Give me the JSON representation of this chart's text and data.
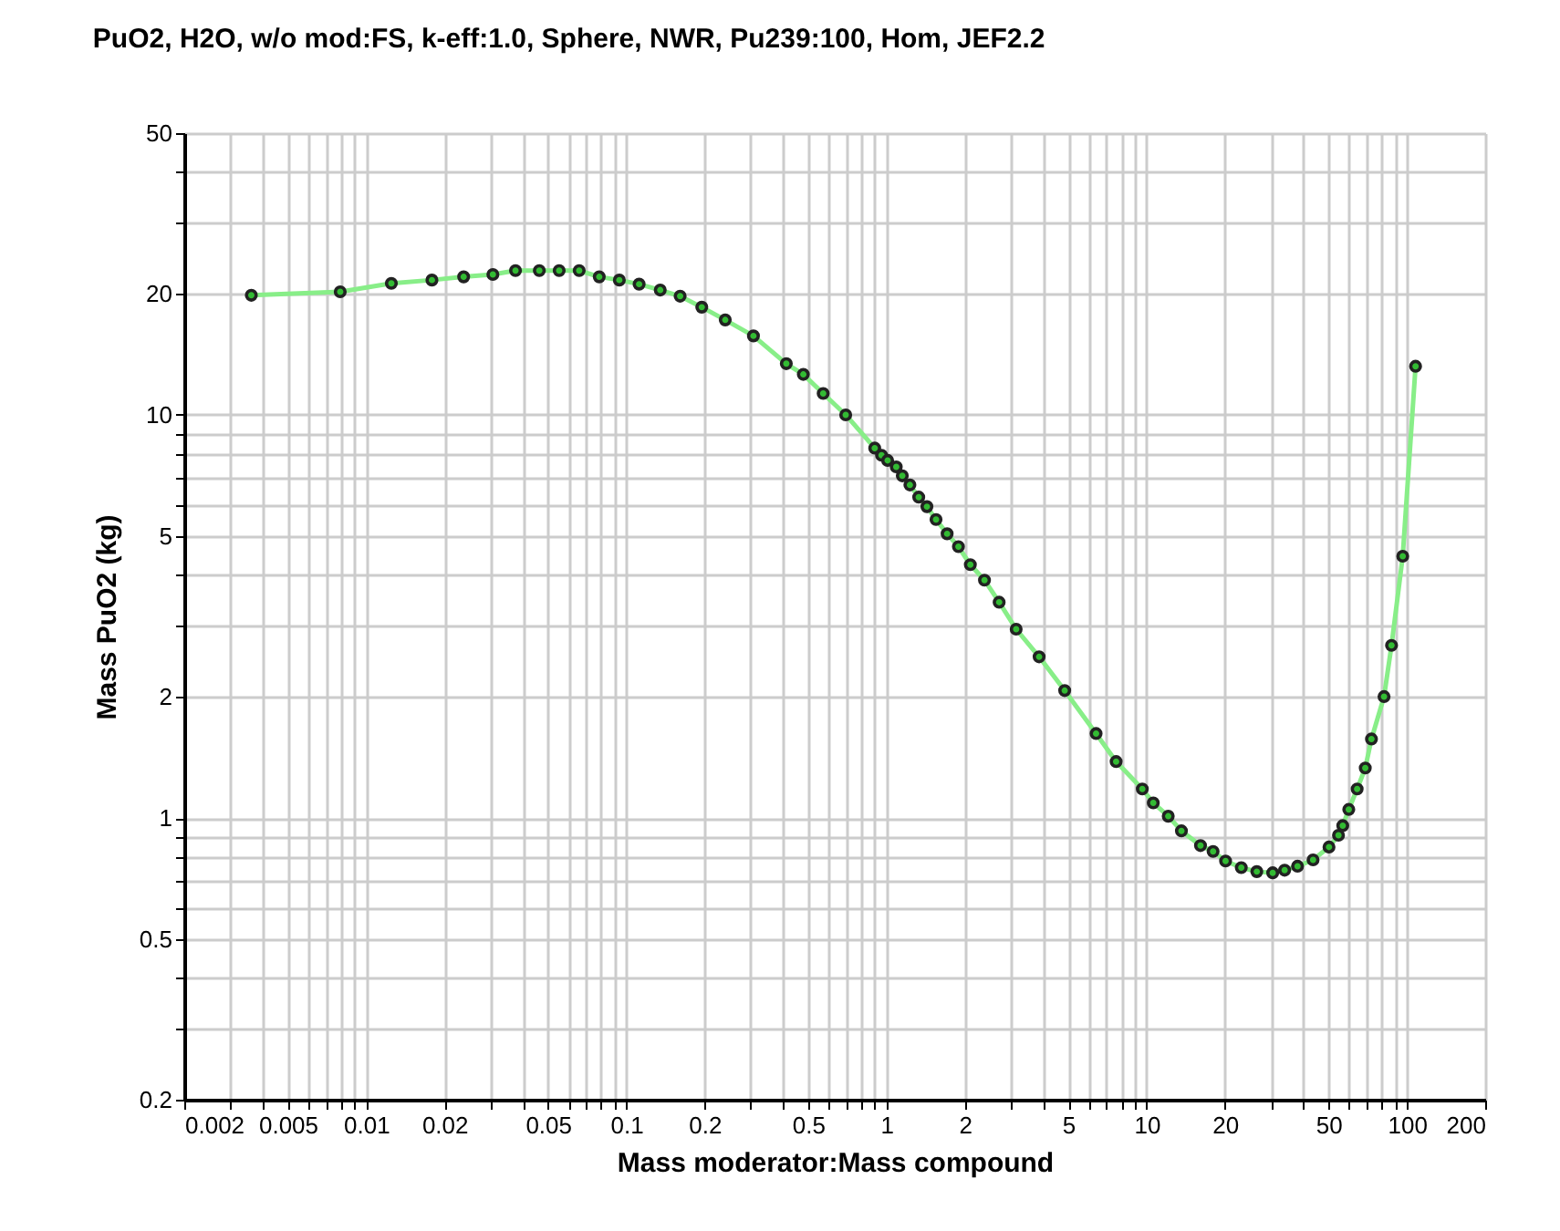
{
  "chart_data": {
    "type": "line",
    "title": "PuO2, H2O, w/o mod:FS, k-eff:1.0, Sphere, NWR, Pu239:100, Hom, JEF2.2",
    "xlabel": "Mass moderator:Mass compound",
    "ylabel": "Mass PuO2 (kg)",
    "log": "xy",
    "grid": true,
    "marker": "circle",
    "line_style": "solid",
    "xlim": [
      0.002,
      200
    ],
    "ylim": [
      0.2,
      50
    ],
    "xticks": [
      0.002,
      {
        "value": 0.003,
        "label": null
      },
      {
        "value": 0.004,
        "label": null
      },
      0.005,
      {
        "value": 0.006,
        "label": null
      },
      {
        "value": 0.007,
        "label": null
      },
      {
        "value": 0.008,
        "label": null
      },
      {
        "value": 0.009,
        "label": null
      },
      0.01,
      0.02,
      {
        "value": 0.03,
        "label": null
      },
      {
        "value": 0.04,
        "label": null
      },
      0.05,
      {
        "value": 0.06,
        "label": null
      },
      {
        "value": 0.07,
        "label": null
      },
      {
        "value": 0.08,
        "label": null
      },
      {
        "value": 0.09,
        "label": null
      },
      0.1,
      0.2,
      {
        "value": 0.3,
        "label": null
      },
      {
        "value": 0.4,
        "label": null
      },
      0.5,
      {
        "value": 0.6,
        "label": null
      },
      {
        "value": 0.7,
        "label": null
      },
      {
        "value": 0.8,
        "label": null
      },
      {
        "value": 0.9,
        "label": null
      },
      1,
      2,
      {
        "value": 3,
        "label": null
      },
      {
        "value": 4,
        "label": null
      },
      5,
      {
        "value": 6,
        "label": null
      },
      {
        "value": 7,
        "label": null
      },
      {
        "value": 8,
        "label": null
      },
      {
        "value": 9,
        "label": null
      },
      10,
      20,
      {
        "value": 30,
        "label": null
      },
      {
        "value": 40,
        "label": null
      },
      50,
      {
        "value": 60,
        "label": null
      },
      {
        "value": 70,
        "label": null
      },
      {
        "value": 80,
        "label": null
      },
      {
        "value": 90,
        "label": null
      },
      100,
      200
    ],
    "yticks": [
      0.2,
      {
        "value": 0.3,
        "label": null
      },
      {
        "value": 0.4,
        "label": null
      },
      0.5,
      {
        "value": 0.6,
        "label": null
      },
      {
        "value": 0.7,
        "label": null
      },
      {
        "value": 0.8,
        "label": null
      },
      {
        "value": 0.9,
        "label": null
      },
      1,
      2,
      {
        "value": 3,
        "label": null
      },
      {
        "value": 4,
        "label": null
      },
      5,
      {
        "value": 6,
        "label": null
      },
      {
        "value": 7,
        "label": null
      },
      {
        "value": 8,
        "label": null
      },
      {
        "value": 9,
        "label": null
      },
      10,
      20,
      {
        "value": 30,
        "label": null
      },
      {
        "value": 40,
        "label": null
      },
      50
    ],
    "x": [
      0.00362,
      0.00795,
      0.0125,
      0.0179,
      0.0237,
      0.0307,
      0.0375,
      0.0463,
      0.0552,
      0.0659,
      0.0787,
      0.094,
      0.112,
      0.135,
      0.161,
      0.195,
      0.24,
      0.308,
      0.412,
      0.479,
      0.571,
      0.697,
      0.901,
      0.957,
      1.01,
      1.09,
      1.15,
      1.23,
      1.33,
      1.43,
      1.55,
      1.71,
      1.89,
      2.1,
      2.38,
      2.71,
      3.15,
      3.86,
      4.84,
      6.39,
      7.63,
      9.62,
      10.6,
      12.1,
      13.6,
      16.1,
      18,
      20.1,
      23.1,
      26.5,
      30.5,
      33.9,
      38,
      43.6,
      50.2,
      54.6,
      56.7,
      59.8,
      64.4,
      69.2,
      73.1,
      81.7,
      87.3,
      96.4,
      108
    ],
    "series": [
      {
        "color": "#88ee88",
        "values": [
          19.8,
          20.2,
          21.2,
          21.6,
          22.0,
          22.3,
          22.8,
          22.8,
          22.8,
          22.8,
          22.0,
          21.6,
          21.1,
          20.4,
          19.7,
          18.5,
          17.2,
          15.7,
          13.4,
          12.6,
          11.3,
          10.0,
          8.27,
          7.94,
          7.71,
          7.43,
          7.06,
          6.7,
          6.25,
          5.92,
          5.5,
          5.07,
          4.71,
          4.25,
          3.89,
          3.43,
          2.94,
          2.51,
          2.07,
          1.62,
          1.38,
          1.18,
          1.09,
          1.01,
          0.929,
          0.854,
          0.826,
          0.782,
          0.753,
          0.736,
          0.731,
          0.742,
          0.759,
          0.787,
          0.847,
          0.906,
          0.957,
          1.05,
          1.18,
          1.33,
          1.57,
          2.0,
          2.68,
          4.46,
          13.2
        ]
      }
    ]
  }
}
